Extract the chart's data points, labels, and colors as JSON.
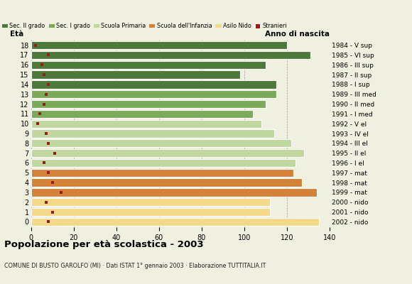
{
  "ages": [
    18,
    17,
    16,
    15,
    14,
    13,
    12,
    11,
    10,
    9,
    8,
    7,
    6,
    5,
    4,
    3,
    2,
    1,
    0
  ],
  "anni_nascita": [
    "1984 - V sup",
    "1985 - VI sup",
    "1986 - III sup",
    "1987 - II sup",
    "1988 - I sup",
    "1989 - III med",
    "1990 - II med",
    "1991 - I med",
    "1992 - V el",
    "1993 - IV el",
    "1994 - III el",
    "1995 - II el",
    "1996 - I el",
    "1997 - mat",
    "1998 - mat",
    "1999 - mat",
    "2000 - nido",
    "2001 - nido",
    "2002 - nido"
  ],
  "bar_values": [
    120,
    131,
    110,
    98,
    115,
    115,
    110,
    104,
    108,
    114,
    122,
    128,
    124,
    123,
    127,
    134,
    112,
    112,
    135
  ],
  "stranieri": [
    2,
    8,
    5,
    6,
    8,
    7,
    6,
    4,
    3,
    7,
    8,
    11,
    6,
    8,
    10,
    14,
    7,
    10,
    8
  ],
  "bar_colors": [
    "#4d7a3a",
    "#4d7a3a",
    "#4d7a3a",
    "#4d7a3a",
    "#4d7a3a",
    "#7aaa5a",
    "#7aaa5a",
    "#7aaa5a",
    "#c0d8a0",
    "#c0d8a0",
    "#c0d8a0",
    "#c0d8a0",
    "#c0d8a0",
    "#d4813a",
    "#d4813a",
    "#d4813a",
    "#f5d98a",
    "#f5d98a",
    "#f5d98a"
  ],
  "legend_labels": [
    "Sec. II grado",
    "Sec. I grado",
    "Scuola Primaria",
    "Scuola dell'Infanzia",
    "Asilo Nido",
    "Stranieri"
  ],
  "legend_colors": [
    "#4d7a3a",
    "#7aaa5a",
    "#c0d8a0",
    "#d4813a",
    "#f5d98a",
    "#9b1a1a"
  ],
  "title": "Popolazione per età scolastica - 2003",
  "subtitle": "COMUNE DI BUSTO GAROLFO (MI) · Dati ISTAT 1° gennaio 2003 · Elaborazione TUTTITALIA.IT",
  "xlabel_eta": "Età",
  "xlabel_anno": "Anno di nascita",
  "xlim": [
    0,
    140
  ],
  "xticks": [
    0,
    20,
    40,
    60,
    80,
    100,
    120,
    140
  ],
  "bg_color": "#f0f0e0",
  "stranieri_color": "#9b1a1a",
  "bar_height": 0.82
}
